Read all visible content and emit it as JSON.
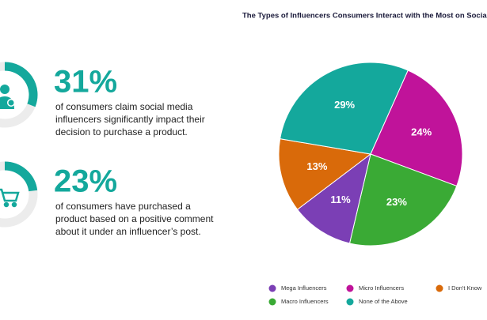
{
  "stats": [
    {
      "value": 31,
      "value_label": "31%",
      "lines": [
        "of consumers claim social media",
        "influencers significantly impact their",
        "decision to purchase a product."
      ]
    },
    {
      "value": 23,
      "value_label": "23%",
      "lines": [
        "of consumers have purchased a",
        "product based on a positive comment",
        "about it under an influencer’s post."
      ]
    }
  ],
  "stat_color": "#14a89c",
  "chart_data": {
    "type": "pie",
    "title": "The Types of Influencers Consumers Interact with the Most on Social M",
    "categories": [
      "Micro Influencers",
      "Macro Influencers",
      "Mega Influencers",
      "I Don't Know",
      "None of the Above"
    ],
    "values": [
      24,
      23,
      11,
      13,
      29
    ],
    "value_labels": [
      "24%",
      "23%",
      "11%",
      "13%",
      "29%"
    ],
    "colors": [
      "#c0139a",
      "#3aaa35",
      "#7b3fb5",
      "#d96a0a",
      "#14a89c"
    ],
    "legend": "bottom"
  }
}
